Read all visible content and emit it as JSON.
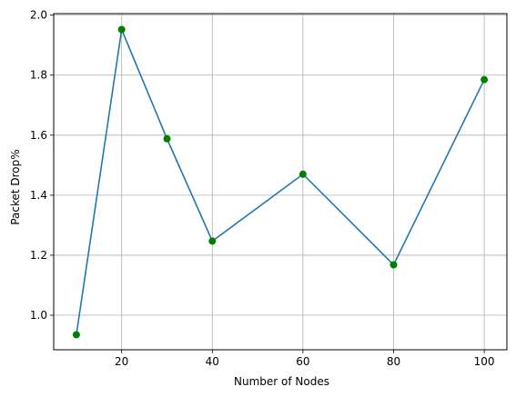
{
  "chart_data": {
    "type": "line",
    "title": "",
    "xlabel": "Number of Nodes",
    "ylabel": "Packet Drop%",
    "x": [
      10,
      20,
      30,
      40,
      60,
      80,
      100
    ],
    "series": [
      {
        "name": "Packet Drop%",
        "values": [
          0.935,
          1.952,
          1.588,
          1.247,
          1.47,
          1.168,
          1.785
        ],
        "line_color": "#1f77b4",
        "marker_color": "#008000"
      }
    ],
    "xlim": [
      5,
      105
    ],
    "ylim": [
      0.885,
      2.005
    ],
    "xticks": [
      20,
      40,
      60,
      80,
      100
    ],
    "xtick_labels": [
      "20",
      "40",
      "60",
      "80",
      "100"
    ],
    "yticks": [
      1.0,
      1.2,
      1.4,
      1.6,
      1.8,
      2.0
    ],
    "ytick_labels": [
      "1.0",
      "1.2",
      "1.4",
      "1.6",
      "1.8",
      "2.0"
    ],
    "grid": true,
    "grid_color": "#b0b0b0"
  }
}
